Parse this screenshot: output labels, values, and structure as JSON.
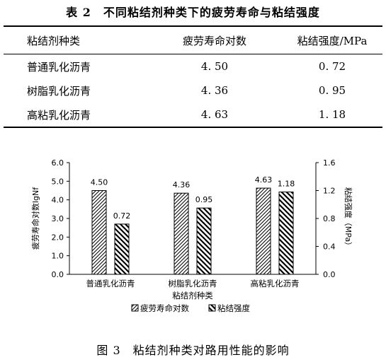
{
  "table": {
    "title": "表 2　不同粘结剂种类下的疲劳寿命与粘结强度",
    "headers": [
      "粘结剂种类",
      "疲劳寿命对数",
      "粘结强度/MPa"
    ],
    "rows": [
      [
        "普通乳化沥青",
        "4. 50",
        "0. 72"
      ],
      [
        "树脂乳化沥青",
        "4. 36",
        "0. 95"
      ],
      [
        "高粘乳化沥青",
        "4. 63",
        "1. 18"
      ]
    ]
  },
  "figure_caption": "图 3　粘结剂种类对路用性能的影响",
  "chart_data": {
    "type": "bar",
    "categories": [
      "普通乳化沥青",
      "树脂乳化沥青",
      "高粘乳化沥青"
    ],
    "series": [
      {
        "name": "疲劳寿命对数",
        "values": [
          4.5,
          4.36,
          4.63
        ],
        "axis": "left",
        "labels": [
          "4.50",
          "4.36",
          "4.63"
        ]
      },
      {
        "name": "粘结强度",
        "values": [
          0.72,
          0.95,
          1.18
        ],
        "axis": "right",
        "labels": [
          "0.72",
          "0.95",
          "1.18"
        ]
      }
    ],
    "xlabel": "粘结剂种类",
    "ylabel_left": "疲劳寿命对数lgNf",
    "ylabel_right": "粘结强度（MPa）",
    "ylim_left": [
      0,
      6
    ],
    "ylim_right": [
      0,
      1.6
    ],
    "yticks_left": [
      "0.0",
      "1.0",
      "2.0",
      "3.0",
      "4.0",
      "5.0",
      "6.0"
    ],
    "yticks_right": [
      "0.0",
      "0.4",
      "0.8",
      "1.2",
      "1.6"
    ],
    "grid": false,
    "legend_position": "bottom",
    "patterns": [
      "diagonal-up",
      "diagonal-down"
    ]
  }
}
